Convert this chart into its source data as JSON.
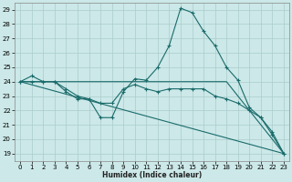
{
  "xlabel": "Humidex (Indice chaleur)",
  "xlim": [
    -0.5,
    23.5
  ],
  "ylim": [
    18.5,
    29.5
  ],
  "yticks": [
    19,
    20,
    21,
    22,
    23,
    24,
    25,
    26,
    27,
    28,
    29
  ],
  "xticks": [
    0,
    1,
    2,
    3,
    4,
    5,
    6,
    7,
    8,
    9,
    10,
    11,
    12,
    13,
    14,
    15,
    16,
    17,
    18,
    19,
    20,
    21,
    22,
    23
  ],
  "background_color": "#cce8e8",
  "grid_color": "#aacccc",
  "line_color": "#1a6b6b",
  "s1x": [
    0,
    1,
    2,
    3,
    4,
    5,
    6,
    7,
    8,
    9,
    10,
    11,
    12,
    13,
    14,
    15,
    16,
    17,
    18,
    19,
    20,
    21,
    22,
    23
  ],
  "s1y": [
    24.0,
    24.4,
    24.0,
    24.0,
    23.3,
    22.8,
    22.8,
    21.5,
    21.5,
    23.3,
    24.2,
    24.1,
    25.0,
    26.5,
    29.1,
    28.8,
    27.5,
    26.5,
    25.0,
    24.1,
    22.2,
    21.5,
    20.3,
    19.0
  ],
  "s2x": [
    0,
    1,
    2,
    3,
    4,
    5,
    6,
    7,
    8,
    9,
    10,
    11,
    12,
    13,
    14,
    15,
    16,
    17,
    18,
    19,
    20,
    21,
    22,
    23
  ],
  "s2y": [
    24.0,
    24.0,
    24.0,
    24.0,
    23.5,
    23.0,
    22.8,
    22.5,
    22.5,
    23.5,
    23.8,
    23.5,
    23.3,
    23.5,
    23.5,
    23.5,
    23.5,
    23.0,
    22.8,
    22.5,
    22.0,
    21.5,
    20.5,
    19.0
  ],
  "s3x": [
    0,
    3,
    10,
    18,
    23
  ],
  "s3y": [
    24.0,
    24.0,
    24.0,
    24.0,
    19.0
  ],
  "s4x": [
    0,
    23
  ],
  "s4y": [
    24.0,
    19.0
  ]
}
